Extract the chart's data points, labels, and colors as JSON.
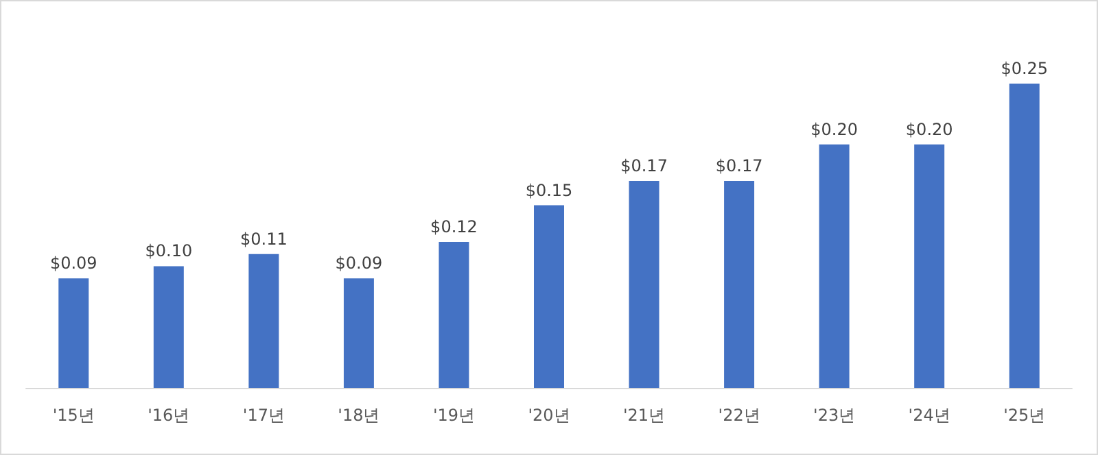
{
  "chart_data": {
    "type": "bar",
    "categories": [
      "'15년",
      "'16년",
      "'17년",
      "'18년",
      "'19년",
      "'20년",
      "'21년",
      "'22년",
      "'23년",
      "'24년",
      "'25년"
    ],
    "values": [
      0.09,
      0.1,
      0.11,
      0.09,
      0.12,
      0.15,
      0.17,
      0.17,
      0.2,
      0.2,
      0.25
    ],
    "value_labels": [
      "$0.09",
      "$0.10",
      "$0.11",
      "$0.09",
      "$0.12",
      "$0.15",
      "$0.17",
      "$0.17",
      "$0.20",
      "$0.20",
      "$0.25"
    ],
    "color": "#4472c4"
  }
}
